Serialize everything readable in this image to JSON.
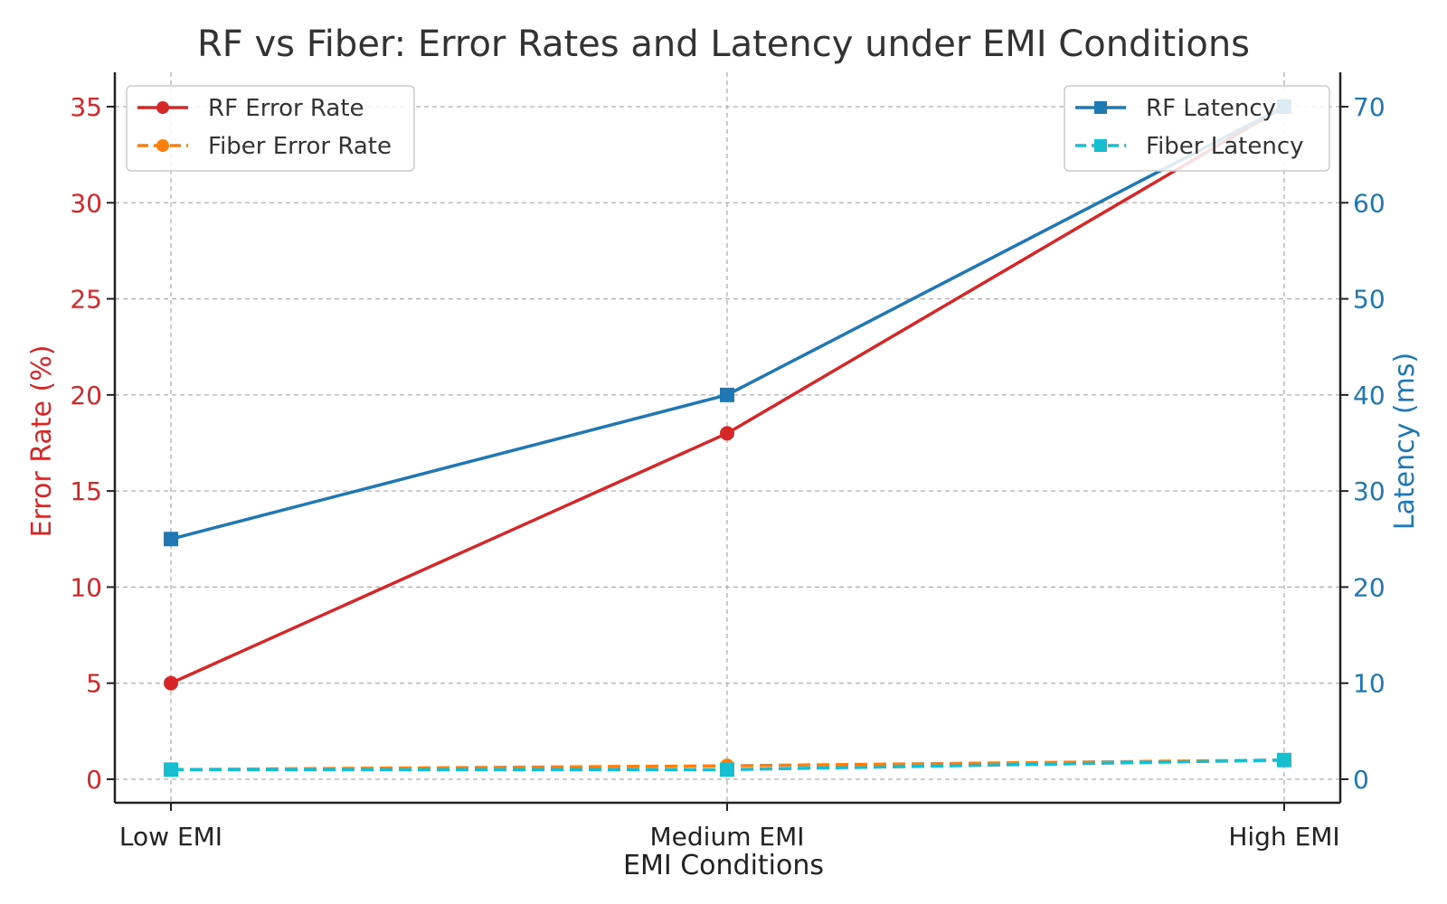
{
  "chart_data": {
    "type": "line",
    "title": "RF vs Fiber: Error Rates and Latency under EMI Conditions",
    "xlabel": "EMI Conditions",
    "categories": [
      "Low EMI",
      "Medium EMI",
      "High EMI"
    ],
    "y_left": {
      "label": "Error Rate (%)",
      "range": [
        0,
        35
      ],
      "ticks": [
        0,
        5,
        10,
        15,
        20,
        25,
        30,
        35
      ],
      "color": "#d62728"
    },
    "y_right": {
      "label": "Latency (ms)",
      "range": [
        0,
        70
      ],
      "ticks": [
        0,
        10,
        20,
        30,
        40,
        50,
        60,
        70
      ],
      "color": "#1f77b4"
    },
    "grid": true,
    "series": [
      {
        "name": "RF Error Rate",
        "axis": "left",
        "values": [
          5,
          18,
          35
        ],
        "color": "#d62728",
        "marker": "circle",
        "dash": false
      },
      {
        "name": "Fiber Error Rate",
        "axis": "left",
        "values": [
          0.5,
          0.7,
          1.0
        ],
        "color": "#ff7f0e",
        "marker": "circle",
        "dash": true
      },
      {
        "name": "RF Latency",
        "axis": "right",
        "values": [
          25,
          40,
          70
        ],
        "color": "#1f77b4",
        "marker": "square",
        "dash": false
      },
      {
        "name": "Fiber Latency",
        "axis": "right",
        "values": [
          1,
          1,
          2
        ],
        "color": "#17becf",
        "marker": "square",
        "dash": true
      }
    ],
    "legends": [
      {
        "placement": "top-left",
        "entries": [
          "RF Error Rate",
          "Fiber Error Rate"
        ]
      },
      {
        "placement": "top-right",
        "entries": [
          "RF Latency",
          "Fiber Latency"
        ]
      }
    ]
  }
}
